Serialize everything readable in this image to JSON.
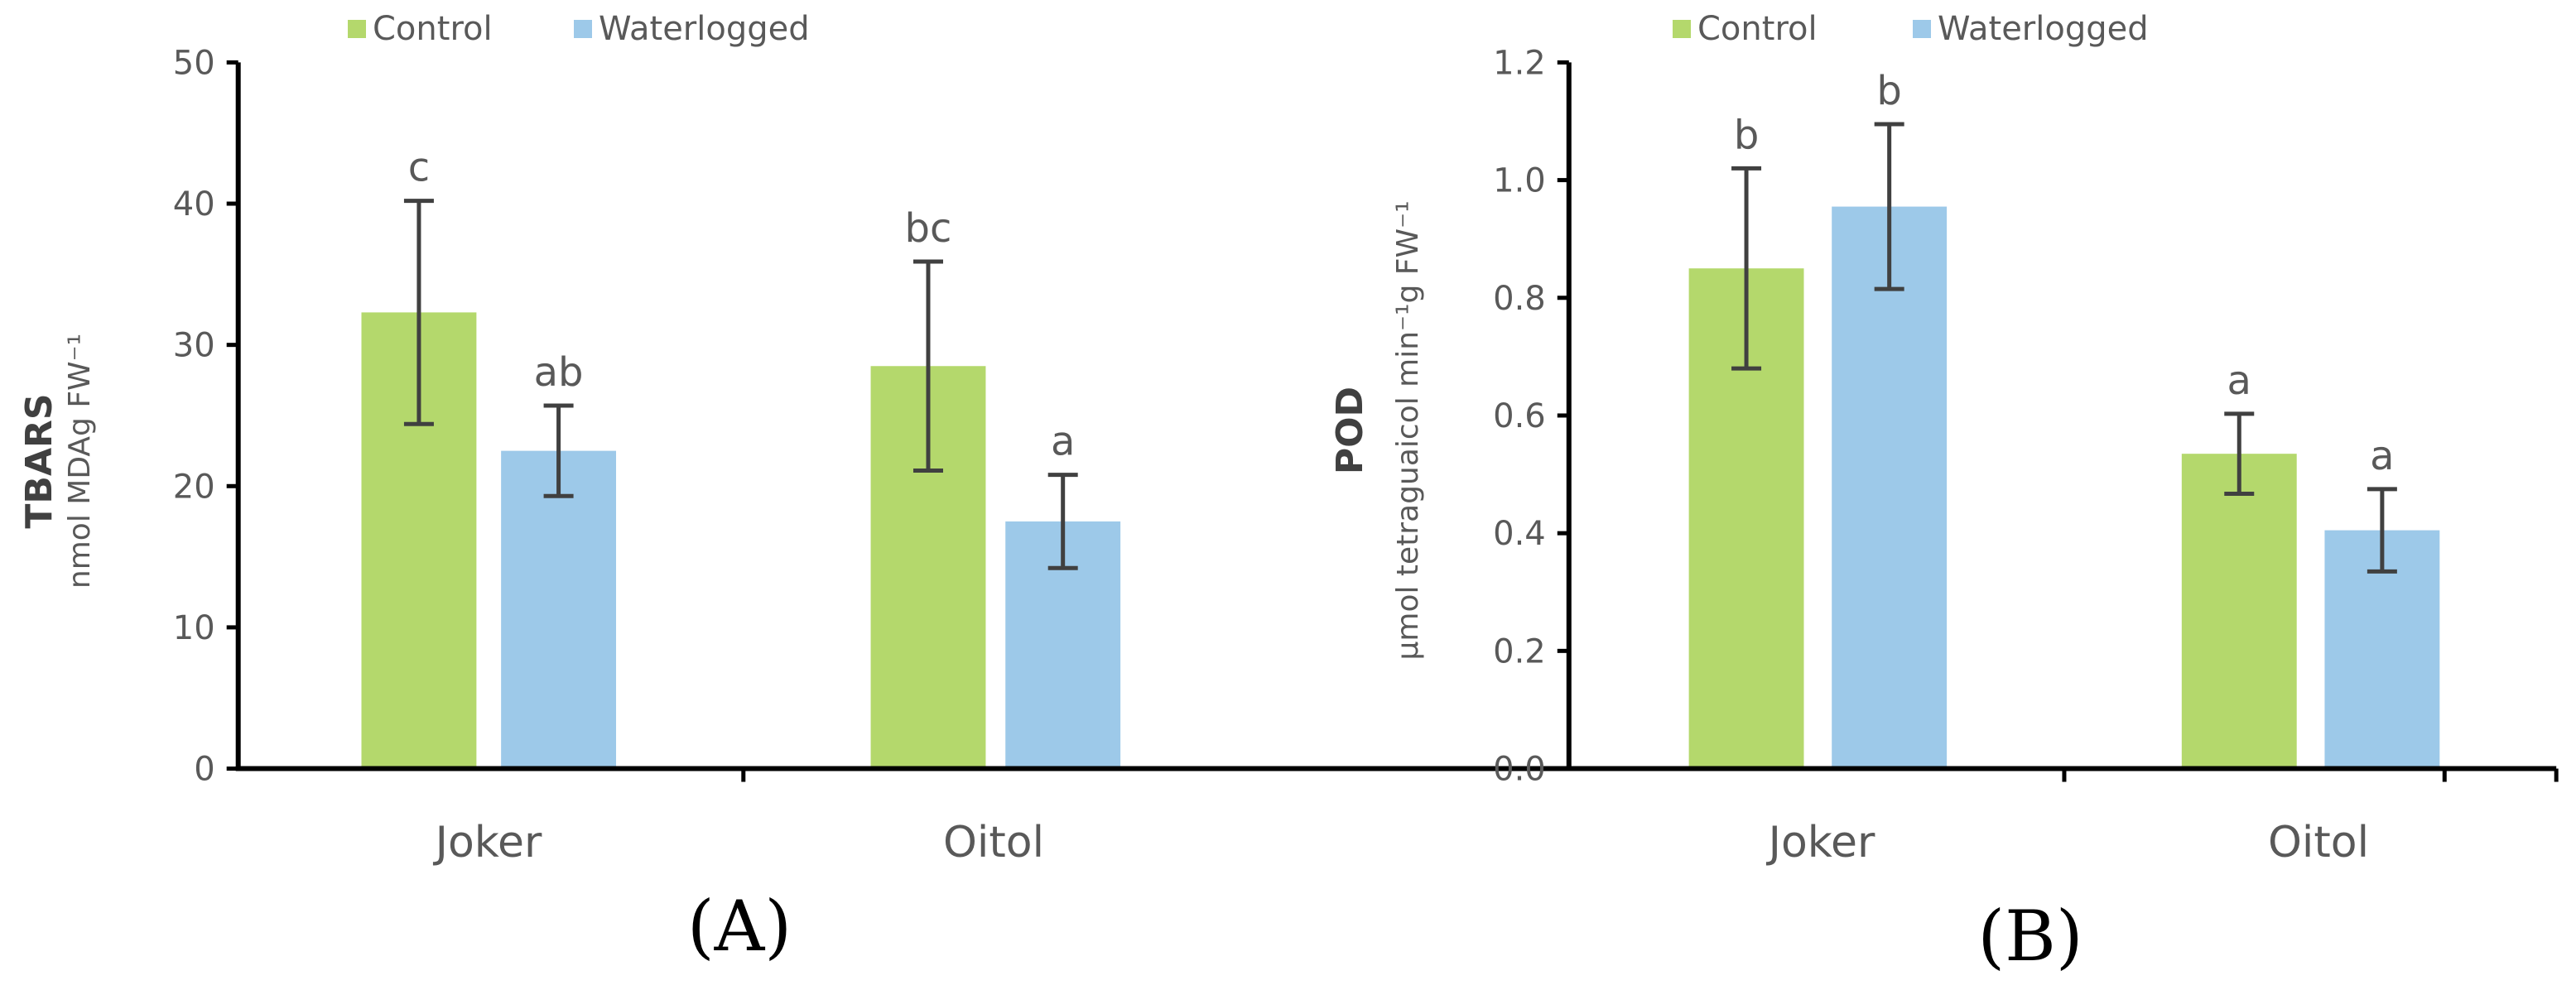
{
  "colors": {
    "control": "#b4d86c",
    "waterlogged": "#9dc9e9",
    "axis": "#000000",
    "error": "#404040",
    "text": "#595959"
  },
  "chart_data": [
    {
      "type": "bar",
      "panel_label": "(A)",
      "legend": [
        "Control",
        "Waterlogged"
      ],
      "ylabel_main": "TBARS",
      "ylabel_sub": "nmol MDAg FW⁻¹",
      "ylim": [
        0,
        50
      ],
      "yticks": [
        "0",
        "10",
        "20",
        "30",
        "40",
        "50"
      ],
      "categories": [
        "Joker",
        "Oitol"
      ],
      "series": [
        {
          "name": "Control",
          "values": [
            32.3,
            28.5
          ],
          "errors": [
            7.9,
            7.4
          ],
          "letters": [
            "c",
            "bc"
          ]
        },
        {
          "name": "Waterlogged",
          "values": [
            22.5,
            17.5
          ],
          "errors": [
            3.2,
            3.3
          ],
          "letters": [
            "ab",
            "a"
          ]
        }
      ]
    },
    {
      "type": "bar",
      "panel_label": "(B)",
      "legend": [
        "Control",
        "Waterlogged"
      ],
      "ylabel_main": "POD",
      "ylabel_sub": "μmol tetraguaicol min⁻¹g FW⁻¹",
      "ylim": [
        0,
        1.2
      ],
      "yticks": [
        "0.0",
        "0.2",
        "0.4",
        "0.6",
        "0.8",
        "1.0",
        "1.2"
      ],
      "categories": [
        "Joker",
        "Oitol"
      ],
      "series": [
        {
          "name": "Control",
          "values": [
            0.85,
            0.535
          ],
          "errors": [
            0.17,
            0.068
          ],
          "letters": [
            "b",
            "a"
          ]
        },
        {
          "name": "Waterlogged",
          "values": [
            0.955,
            0.405
          ],
          "errors": [
            0.14,
            0.07
          ],
          "letters": [
            "b",
            "a"
          ]
        }
      ]
    }
  ]
}
